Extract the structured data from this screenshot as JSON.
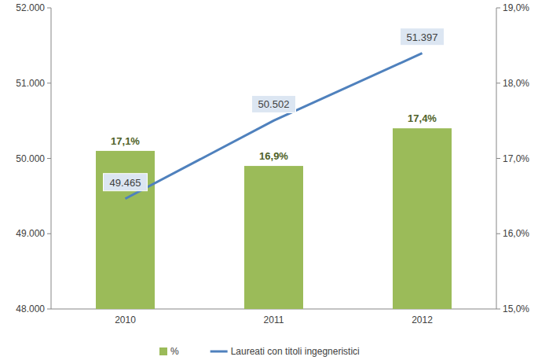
{
  "chart_data": {
    "type": "bar",
    "categories": [
      "2010",
      "2011",
      "2012"
    ],
    "series": [
      {
        "name": "%",
        "type": "bar",
        "color": "#9bbb59",
        "axis": "y2",
        "values": [
          17.1,
          16.9,
          17.4
        ],
        "value_labels": [
          "17,1%",
          "16,9%",
          "17,4%"
        ]
      },
      {
        "name": "Laureati con titoli ingegneristici",
        "type": "line",
        "color": "#4f81bd",
        "marker": "none",
        "line_style": "solid",
        "values": [
          49465,
          50502,
          51397
        ],
        "value_labels": [
          "49.465",
          "50.502",
          "51.397"
        ]
      }
    ],
    "ylim": [
      48000,
      52000
    ],
    "yticks": [
      {
        "value": 48000,
        "label": "48.000"
      },
      {
        "value": 49000,
        "label": "49.000"
      },
      {
        "value": 50000,
        "label": "50.000"
      },
      {
        "value": 51000,
        "label": "51.000"
      },
      {
        "value": 52000,
        "label": "52.000"
      }
    ],
    "y2lim": [
      15,
      19
    ],
    "y2ticks": [
      {
        "value": 15,
        "label": "15,0%"
      },
      {
        "value": 16,
        "label": "16,0%"
      },
      {
        "value": 17,
        "label": "17,0%"
      },
      {
        "value": 18,
        "label": "18,0%"
      },
      {
        "value": 19,
        "label": "19,0%"
      }
    ],
    "grid": false,
    "data_labels": true,
    "legend": "bottom"
  }
}
